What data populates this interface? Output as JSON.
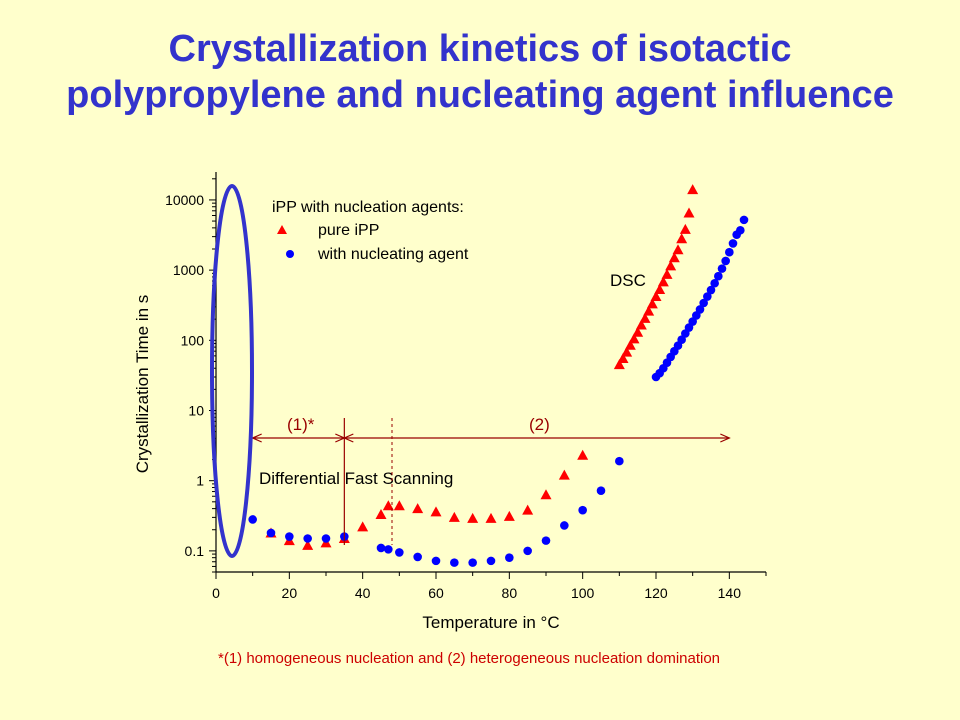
{
  "title": {
    "line1": "Crystallization kinetics of isotactic",
    "line2": "polypropylene and nucleating agent influence"
  },
  "footnote": "*(1) homogeneous nucleation and (2) heterogeneous nucleation domination",
  "chart_data": {
    "type": "scatter",
    "title": "",
    "xlabel": "Temperature in °C",
    "ylabel": "Crystallization Time in s",
    "xlim": [
      0,
      150
    ],
    "ylim": [
      0.05,
      25000
    ],
    "yscale": "log",
    "x_ticks": [
      0,
      20,
      40,
      60,
      80,
      100,
      120,
      140
    ],
    "y_ticks": [
      {
        "value": 0.1,
        "label": "0.1"
      },
      {
        "value": 1,
        "label": "1"
      },
      {
        "value": 10,
        "label": "10"
      },
      {
        "value": 100,
        "label": "100"
      },
      {
        "value": 1000,
        "label": "1000"
      },
      {
        "value": 10000,
        "label": "10000"
      }
    ],
    "legend_title": "iPP with nucleation agents:",
    "legend_position": "top-left",
    "colors": {
      "pure": "#ff0000",
      "nucleated": "#0000ff",
      "ellipse": "#3333cc",
      "region": "#990000"
    },
    "series": [
      {
        "name": "pure iPP",
        "marker": "triangle",
        "color": "#ff0000",
        "points": [
          [
            15,
            0.18
          ],
          [
            20,
            0.14
          ],
          [
            25,
            0.12
          ],
          [
            30,
            0.13
          ],
          [
            35,
            0.15
          ],
          [
            40,
            0.22
          ],
          [
            45,
            0.33
          ],
          [
            47,
            0.44
          ],
          [
            50,
            0.44
          ],
          [
            55,
            0.4
          ],
          [
            60,
            0.36
          ],
          [
            65,
            0.3
          ],
          [
            70,
            0.29
          ],
          [
            75,
            0.29
          ],
          [
            80,
            0.31
          ],
          [
            85,
            0.38
          ],
          [
            90,
            0.63
          ],
          [
            95,
            1.2
          ],
          [
            100,
            2.3
          ],
          [
            110,
            45
          ],
          [
            111,
            55
          ],
          [
            112,
            68
          ],
          [
            113,
            85
          ],
          [
            114,
            105
          ],
          [
            115,
            130
          ],
          [
            116,
            165
          ],
          [
            117,
            205
          ],
          [
            118,
            260
          ],
          [
            119,
            330
          ],
          [
            120,
            420
          ],
          [
            121,
            530
          ],
          [
            122,
            680
          ],
          [
            123,
            870
          ],
          [
            124,
            1150
          ],
          [
            125,
            1500
          ],
          [
            126,
            1950
          ],
          [
            127,
            2800
          ],
          [
            128,
            3800
          ],
          [
            129,
            6500
          ],
          [
            130,
            14000
          ]
        ]
      },
      {
        "name": "with nucleating agent",
        "marker": "circle",
        "color": "#0000ff",
        "points": [
          [
            10,
            0.28
          ],
          [
            15,
            0.18
          ],
          [
            20,
            0.16
          ],
          [
            25,
            0.15
          ],
          [
            30,
            0.15
          ],
          [
            35,
            0.16
          ],
          [
            45,
            0.11
          ],
          [
            47,
            0.105
          ],
          [
            50,
            0.095
          ],
          [
            55,
            0.082
          ],
          [
            60,
            0.072
          ],
          [
            65,
            0.068
          ],
          [
            70,
            0.068
          ],
          [
            75,
            0.072
          ],
          [
            80,
            0.08
          ],
          [
            85,
            0.1
          ],
          [
            90,
            0.14
          ],
          [
            95,
            0.23
          ],
          [
            100,
            0.38
          ],
          [
            105,
            0.72
          ],
          [
            110,
            1.9
          ],
          [
            120,
            30
          ],
          [
            121,
            34
          ],
          [
            122,
            40
          ],
          [
            123,
            48
          ],
          [
            124,
            58
          ],
          [
            125,
            70
          ],
          [
            126,
            84
          ],
          [
            127,
            102
          ],
          [
            128,
            125
          ],
          [
            129,
            152
          ],
          [
            130,
            185
          ],
          [
            131,
            226
          ],
          [
            132,
            275
          ],
          [
            133,
            340
          ],
          [
            134,
            420
          ],
          [
            135,
            520
          ],
          [
            136,
            650
          ],
          [
            137,
            820
          ],
          [
            138,
            1050
          ],
          [
            139,
            1350
          ],
          [
            140,
            1800
          ],
          [
            141,
            2400
          ],
          [
            142,
            3200
          ],
          [
            143,
            3700
          ],
          [
            144,
            5200
          ]
        ]
      }
    ],
    "annotations": {
      "dsc_label": "DSC",
      "dfs_label": "Differential Fast Scanning",
      "region1_label": "(1)*",
      "region2_label": "(2)",
      "region_boundaries": {
        "start": 10,
        "split": 35,
        "dashed": 48,
        "end": 140
      }
    }
  }
}
